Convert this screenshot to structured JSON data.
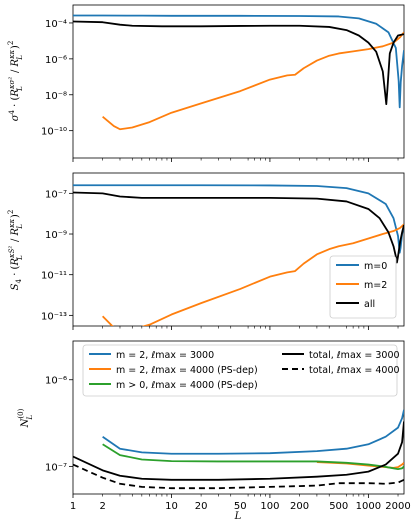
{
  "chart_data": [
    {
      "type": "line",
      "ylabel": "σ⁴ · (R_L^{κσ²} / R_L^{κκ})²",
      "xlabel": "",
      "xscale": "log",
      "yscale": "log",
      "xlim": [
        1,
        2300
      ],
      "ylim": [
        3e-12,
        0.001
      ],
      "grid": false,
      "x_tick_labels_shown": false,
      "y_ticks": [
        {
          "value": 0.0001,
          "label": "10⁻⁴"
        },
        {
          "value": 1e-06,
          "label": "10⁻⁶"
        },
        {
          "value": 1e-08,
          "label": "10⁻⁸"
        },
        {
          "value": 1e-10,
          "label": "10⁻¹⁰"
        }
      ],
      "series": [
        {
          "color": "#1f77b4",
          "points": [
            [
              1,
              0.00026
            ],
            [
              2,
              0.00026
            ],
            [
              5,
              0.000255
            ],
            [
              10,
              0.00025
            ],
            [
              50,
              0.00025
            ],
            [
              200,
              0.000245
            ],
            [
              500,
              0.00023
            ],
            [
              800,
              0.00018
            ],
            [
              1200,
              9e-05
            ],
            [
              1600,
              3e-05
            ],
            [
              1900,
              4e-06
            ],
            [
              2030,
              6e-08
            ],
            [
              2080,
              2e-09
            ],
            [
              2130,
              5e-08
            ],
            [
              2200,
              4e-07
            ],
            [
              2300,
              3e-06
            ]
          ]
        },
        {
          "color": "#ff7f0e",
          "points": [
            [
              2,
              6e-10
            ],
            [
              2.6,
              1.8e-10
            ],
            [
              3,
              1.2e-10
            ],
            [
              4,
              1.5e-10
            ],
            [
              6,
              3e-10
            ],
            [
              10,
              1e-09
            ],
            [
              20,
              3.3e-09
            ],
            [
              50,
              1.6e-08
            ],
            [
              100,
              7e-08
            ],
            [
              150,
              1.2e-07
            ],
            [
              180,
              1.3e-07
            ],
            [
              220,
              3e-07
            ],
            [
              300,
              8e-07
            ],
            [
              400,
              1.5e-06
            ],
            [
              500,
              2e-06
            ],
            [
              700,
              2.6e-06
            ],
            [
              1000,
              3.5e-06
            ],
            [
              1400,
              5e-06
            ],
            [
              1800,
              8e-06
            ],
            [
              2100,
              1.6e-05
            ],
            [
              2300,
              3e-05
            ]
          ]
        },
        {
          "color": "#000000",
          "points": [
            [
              1,
              0.00012
            ],
            [
              2,
              0.00011
            ],
            [
              3,
              8e-05
            ],
            [
              4,
              7e-05
            ],
            [
              8,
              6.5e-05
            ],
            [
              20,
              6.5e-05
            ],
            [
              50,
              6.8e-05
            ],
            [
              100,
              7e-05
            ],
            [
              200,
              7e-05
            ],
            [
              400,
              6e-05
            ],
            [
              600,
              4e-05
            ],
            [
              800,
              2e-05
            ],
            [
              1000,
              8e-06
            ],
            [
              1200,
              2.5e-06
            ],
            [
              1400,
              2e-07
            ],
            [
              1480,
              1.2e-08
            ],
            [
              1520,
              3e-09
            ],
            [
              1560,
              2e-08
            ],
            [
              1650,
              2e-06
            ],
            [
              1800,
              8e-06
            ],
            [
              2000,
              2e-05
            ],
            [
              2300,
              2.4e-05
            ]
          ]
        }
      ]
    },
    {
      "type": "line",
      "ylabel": "S₄ · (R_L^{κS²} / R_L^{κκ})²",
      "xlabel": "",
      "xscale": "log",
      "yscale": "log",
      "xlim": [
        1,
        2300
      ],
      "ylim": [
        3e-14,
        1e-06
      ],
      "grid": false,
      "x_tick_labels_shown": false,
      "legend_position": "lower-right",
      "legend": [
        "m=0",
        "m=2",
        "all"
      ],
      "y_ticks": [
        {
          "value": 1e-07,
          "label": "10⁻⁷"
        },
        {
          "value": 1e-09,
          "label": "10⁻⁹"
        },
        {
          "value": 1e-11,
          "label": "10⁻¹¹"
        },
        {
          "value": 1e-13,
          "label": "10⁻¹³"
        }
      ],
      "series": [
        {
          "name": "m=0",
          "color": "#1f77b4",
          "points": [
            [
              1,
              2.5e-07
            ],
            [
              5,
              2.5e-07
            ],
            [
              20,
              2.5e-07
            ],
            [
              100,
              2.45e-07
            ],
            [
              300,
              2.3e-07
            ],
            [
              600,
              1.8e-07
            ],
            [
              1000,
              1e-07
            ],
            [
              1500,
              3e-08
            ],
            [
              1800,
              6e-09
            ],
            [
              2000,
              8e-10
            ],
            [
              2080,
              1.2e-10
            ],
            [
              2120,
              2e-10
            ],
            [
              2200,
              1e-09
            ],
            [
              2300,
              2.5e-09
            ]
          ]
        },
        {
          "name": "m=2",
          "color": "#ff7f0e",
          "points": [
            [
              2,
              9e-14
            ],
            [
              2.6,
              2.5e-14
            ],
            [
              3,
              1.8e-14
            ],
            [
              4,
              2e-14
            ],
            [
              6,
              3.5e-14
            ],
            [
              10,
              1.1e-13
            ],
            [
              20,
              4e-13
            ],
            [
              50,
              2e-12
            ],
            [
              100,
              8e-12
            ],
            [
              150,
              1.3e-11
            ],
            [
              180,
              1.5e-11
            ],
            [
              220,
              3.5e-11
            ],
            [
              300,
              1e-10
            ],
            [
              400,
              1.8e-10
            ],
            [
              500,
              2.5e-10
            ],
            [
              700,
              3.5e-10
            ],
            [
              1000,
              6e-10
            ],
            [
              1400,
              1e-09
            ],
            [
              1800,
              1.4e-09
            ],
            [
              2100,
              2e-09
            ],
            [
              2300,
              3e-09
            ]
          ]
        },
        {
          "name": "all",
          "color": "#000000",
          "points": [
            [
              1,
              1.1e-07
            ],
            [
              2,
              1e-07
            ],
            [
              3,
              7e-08
            ],
            [
              5,
              6e-08
            ],
            [
              20,
              6e-08
            ],
            [
              100,
              6e-08
            ],
            [
              300,
              5.5e-08
            ],
            [
              600,
              4e-08
            ],
            [
              1000,
              1.7e-08
            ],
            [
              1300,
              6e-09
            ],
            [
              1600,
              1.2e-09
            ],
            [
              1800,
              2.5e-10
            ],
            [
              1900,
              8e-11
            ],
            [
              1950,
              4e-11
            ],
            [
              2000,
              8e-11
            ],
            [
              2100,
              4e-10
            ],
            [
              2200,
              1.2e-09
            ],
            [
              2300,
              2.8e-09
            ]
          ]
        }
      ]
    },
    {
      "type": "line",
      "xlabel": "L",
      "ylabel": "N_L^{(0)}",
      "xscale": "log",
      "yscale": "log",
      "xlim": [
        1,
        2300
      ],
      "ylim": [
        4.8e-08,
        2.8e-06
      ],
      "grid": false,
      "legend_position": "top",
      "legend": [
        "m = 2, ℓmax = 3000",
        "m = 2, ℓmax = 4000 (PS-dep)",
        "m > 0, ℓmax = 4000 (PS-dep)",
        "total, ℓmax = 3000",
        "total, ℓmax = 4000"
      ],
      "x_ticks": [
        {
          "value": 1,
          "label": "1"
        },
        {
          "value": 2,
          "label": "2"
        },
        {
          "value": 10,
          "label": "10"
        },
        {
          "value": 20,
          "label": "20"
        },
        {
          "value": 50,
          "label": "50"
        },
        {
          "value": 100,
          "label": "100"
        },
        {
          "value": 200,
          "label": "200"
        },
        {
          "value": 500,
          "label": "500"
        },
        {
          "value": 1000,
          "label": "1000"
        },
        {
          "value": 2000,
          "label": "2000"
        }
      ],
      "y_ticks": [
        {
          "value": 1e-06,
          "label": "10⁻⁶"
        },
        {
          "value": 1e-07,
          "label": "10⁻⁷"
        }
      ],
      "series": [
        {
          "name": "m = 2, ℓmax = 3000",
          "color": "#1f77b4",
          "dash": "",
          "points": [
            [
              2,
              2.2e-07
            ],
            [
              3,
              1.6e-07
            ],
            [
              5,
              1.45e-07
            ],
            [
              10,
              1.4e-07
            ],
            [
              30,
              1.4e-07
            ],
            [
              100,
              1.42e-07
            ],
            [
              300,
              1.5e-07
            ],
            [
              600,
              1.6e-07
            ],
            [
              1000,
              1.8e-07
            ],
            [
              1500,
              2.2e-07
            ],
            [
              2000,
              2.8e-07
            ],
            [
              2200,
              3.6e-07
            ],
            [
              2300,
              4.5e-07
            ]
          ]
        },
        {
          "name": "m = 2, ℓmax = 4000 (PS-dep)",
          "color": "#ff7f0e",
          "dash": "",
          "points": [
            [
              300,
              1.12e-07
            ],
            [
              600,
              1.08e-07
            ],
            [
              1000,
              1.02e-07
            ],
            [
              1500,
              9.8e-08
            ],
            [
              1800,
              9.6e-08
            ],
            [
              2000,
              9.8e-08
            ],
            [
              2200,
              1.05e-07
            ],
            [
              2300,
              1.1e-07
            ]
          ]
        },
        {
          "name": "m > 0, ℓmax = 4000 (PS-dep)",
          "color": "#2ca02c",
          "dash": "",
          "points": [
            [
              2,
              1.8e-07
            ],
            [
              3,
              1.35e-07
            ],
            [
              5,
              1.2e-07
            ],
            [
              10,
              1.15e-07
            ],
            [
              30,
              1.14e-07
            ],
            [
              100,
              1.14e-07
            ],
            [
              300,
              1.14e-07
            ],
            [
              600,
              1.1e-07
            ],
            [
              1000,
              1.05e-07
            ],
            [
              1400,
              1e-07
            ],
            [
              1800,
              9.5e-08
            ],
            [
              2000,
              9.3e-08
            ],
            [
              2200,
              9.5e-08
            ],
            [
              2300,
              1e-07
            ]
          ]
        },
        {
          "name": "total, ℓmax = 3000",
          "color": "#000000",
          "dash": "",
          "points": [
            [
              1,
              1.3e-07
            ],
            [
              2,
              9e-08
            ],
            [
              3,
              7.8e-08
            ],
            [
              5,
              7.2e-08
            ],
            [
              10,
              7e-08
            ],
            [
              30,
              7e-08
            ],
            [
              100,
              7.2e-08
            ],
            [
              300,
              7.6e-08
            ],
            [
              600,
              8e-08
            ],
            [
              1000,
              8.7e-08
            ],
            [
              1500,
              1.05e-07
            ],
            [
              2000,
              1.4e-07
            ],
            [
              2200,
              1.9e-07
            ],
            [
              2300,
              3.3e-07
            ]
          ]
        },
        {
          "name": "total, ℓmax = 4000",
          "color": "#000000",
          "dash": "6,4",
          "points": [
            [
              1,
              1.05e-07
            ],
            [
              2,
              7.4e-08
            ],
            [
              3,
              6.3e-08
            ],
            [
              5,
              5.8e-08
            ],
            [
              10,
              5.6e-08
            ],
            [
              30,
              5.6e-08
            ],
            [
              100,
              5.8e-08
            ],
            [
              300,
              6e-08
            ],
            [
              500,
              6.4e-08
            ],
            [
              1000,
              6.4e-08
            ],
            [
              1500,
              6.3e-08
            ],
            [
              2000,
              6.5e-08
            ],
            [
              2300,
              7e-08
            ]
          ]
        }
      ]
    }
  ]
}
